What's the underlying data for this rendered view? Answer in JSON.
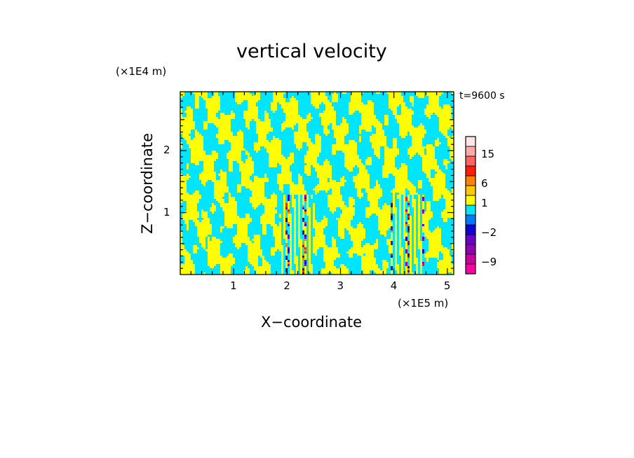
{
  "chart_data": {
    "type": "heatmap",
    "title": "vertical velocity",
    "xlabel": "X−coordinate",
    "ylabel": "Z−coordinate",
    "x_unit": "(×1E5 m)",
    "y_unit": "(×1E4 m)",
    "time_label": "t=9600 s",
    "xlim": [
      0,
      5.12
    ],
    "ylim": [
      0,
      2.95
    ],
    "x_ticks": [
      1,
      2,
      3,
      4,
      5
    ],
    "y_ticks": [
      1,
      2
    ],
    "x_tick_labels": [
      "1",
      "2",
      "3",
      "4",
      "5"
    ],
    "y_tick_labels": [
      "1",
      "2"
    ],
    "background_colors": [
      "#00e5ff",
      "#ffff00"
    ],
    "wave_zones": [
      {
        "x": [
          1.9,
          2.5
        ],
        "z": [
          0.0,
          1.3
        ]
      },
      {
        "x": [
          3.95,
          4.55
        ],
        "z": [
          0.0,
          1.3
        ]
      },
      {
        "x": [
          0.45,
          0.55
        ],
        "z": [
          0.4,
          0.6
        ]
      }
    ],
    "colorbar": {
      "levels": [
        {
          "color": "#ff00a6",
          "label": ""
        },
        {
          "color": "#c8009e",
          "label": "−9"
        },
        {
          "color": "#9000b0",
          "label": ""
        },
        {
          "color": "#6a00c8",
          "label": ""
        },
        {
          "color": "#1400c8",
          "label": "−2"
        },
        {
          "color": "#0078ff",
          "label": ""
        },
        {
          "color": "#00e5ff",
          "label": ""
        },
        {
          "color": "#ffff00",
          "label": "1"
        },
        {
          "color": "#ffc800",
          "label": ""
        },
        {
          "color": "#ff8200",
          "label": "6"
        },
        {
          "color": "#ff1e00",
          "label": ""
        },
        {
          "color": "#ff6464",
          "label": ""
        },
        {
          "color": "#ffaaaa",
          "label": "15"
        },
        {
          "color": "#ffe6e6",
          "label": ""
        }
      ]
    }
  }
}
